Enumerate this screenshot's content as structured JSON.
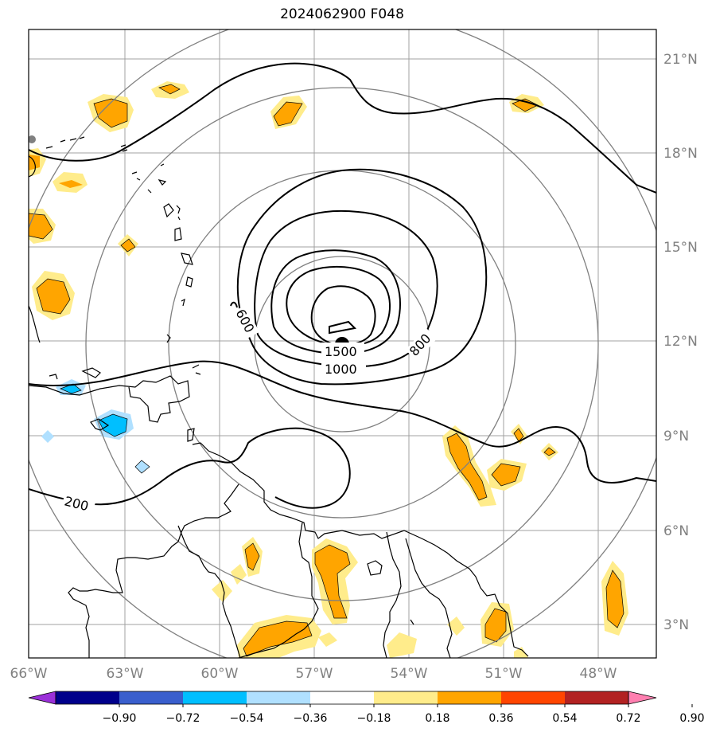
{
  "title": "2024062900 F048",
  "map": {
    "lon_range": [
      -66,
      -46
    ],
    "lat_range": [
      2,
      22
    ],
    "lon_ticks": [
      "66°W",
      "63°W",
      "60°W",
      "57°W",
      "54°W",
      "51°W",
      "48°W"
    ],
    "lat_ticks": [
      "21°N",
      "18°N",
      "15°N",
      "12°N",
      "9°N",
      "6°N",
      "3°N"
    ],
    "storm_center": {
      "lon": -56.0,
      "lat": 11.9
    },
    "contour_labels": [
      "1500",
      "1000",
      "800",
      "600",
      "200"
    ]
  },
  "colorbar": {
    "ticks": [
      "−0.90",
      "−0.72",
      "−0.54",
      "−0.36",
      "−0.18",
      "0.18",
      "0.36",
      "0.54",
      "0.72",
      "0.90"
    ],
    "colors": [
      "#9b30d9",
      "#00008b",
      "#3a5fcd",
      "#00bfff",
      "#b0e0ff",
      "#ffffff",
      "#ffec8b",
      "#ffa500",
      "#ff4500",
      "#b22222",
      "#ff7fb0"
    ]
  }
}
